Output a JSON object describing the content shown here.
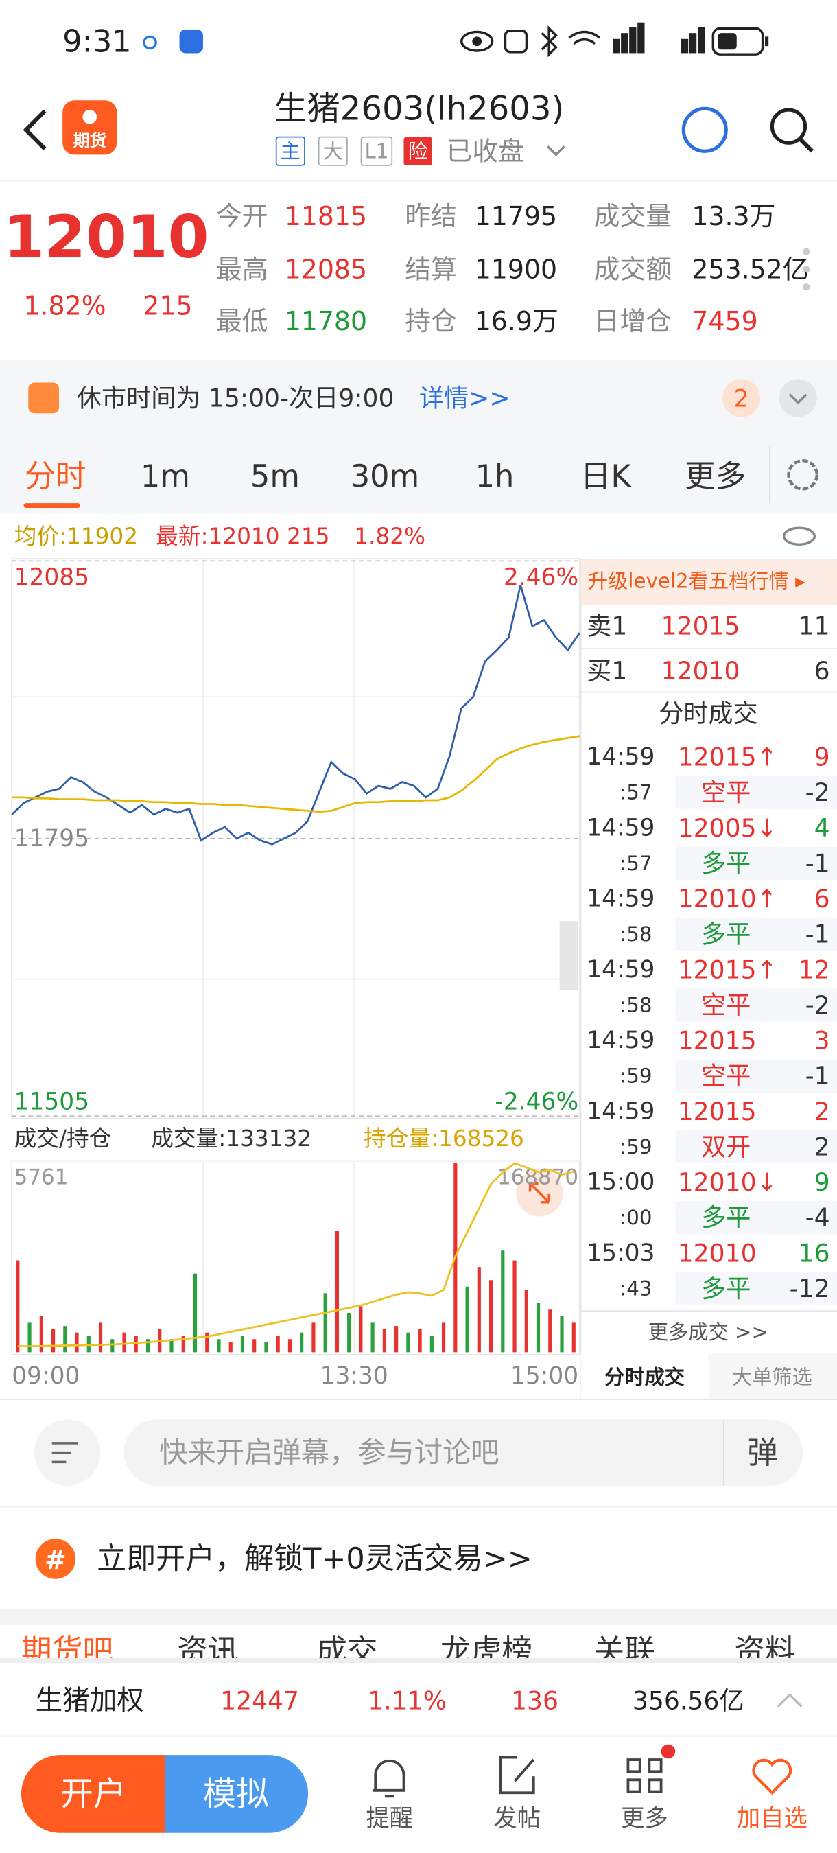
{
  "status_bar": {
    "time": "9:31"
  },
  "header": {
    "logo": "期货",
    "title": "生猪2603(lh2603)",
    "tags": [
      "主",
      "大",
      "L1",
      "险"
    ],
    "status": "已收盘"
  },
  "quote": {
    "price": "12010",
    "change_pct": "1.82%",
    "change": "215",
    "fields": [
      {
        "label": "今开",
        "value": "11815",
        "color": "#e8322f"
      },
      {
        "label": "昨结",
        "value": "11795",
        "color": "#222222"
      },
      {
        "label": "成交量",
        "value": "13.3万",
        "color": "#222222"
      },
      {
        "label": "最高",
        "value": "12085",
        "color": "#e8322f"
      },
      {
        "label": "结算",
        "value": "11900",
        "color": "#222222"
      },
      {
        "label": "成交额",
        "value": "253.52亿",
        "color": "#222222"
      },
      {
        "label": "最低",
        "value": "11780",
        "color": "#1e9a3a"
      },
      {
        "label": "持仓",
        "value": "16.9万",
        "color": "#222222"
      },
      {
        "label": "日增仓",
        "value": "7459",
        "color": "#e8322f"
      }
    ]
  },
  "notice": {
    "text": "休市时间为 15:00-次日9:00",
    "link": "详情>>",
    "badge": "2"
  },
  "tabs": [
    "分时",
    "1m",
    "5m",
    "30m",
    "1h",
    "日K",
    "更多"
  ],
  "chart_info": {
    "average": "均价:11902",
    "latest": "最新:12010",
    "change": "215",
    "change_pct": "1.82%"
  },
  "volume_info": {
    "selector": "成交/持仓",
    "volume": "成交量:133132",
    "open_interest": "持仓量:168526"
  },
  "chart_data": [
    {
      "type": "line",
      "ylim": [
        11505,
        12085
      ],
      "yticks": [
        12085,
        11795,
        11505
      ],
      "y2lim": [
        -2.46,
        2.46
      ],
      "y2ticks": [
        {
          "value": 2.46,
          "label": "2.46%"
        },
        {
          "value": -2.46,
          "label": "-2.46%"
        }
      ],
      "x_labels": [
        "09:00",
        "13:30",
        "15:00"
      ],
      "series": [
        {
          "color": "#2f5fa8",
          "values": [
            11820,
            11832,
            11838,
            11844,
            11847,
            11859,
            11854,
            11844,
            11838,
            11830,
            11822,
            11830,
            11820,
            11826,
            11822,
            11826,
            11793,
            11801,
            11807,
            11795,
            11801,
            11793,
            11789,
            11795,
            11801,
            11813,
            11844,
            11875,
            11863,
            11857,
            11842,
            11850,
            11847,
            11854,
            11850,
            11838,
            11847,
            11881,
            11931,
            11943,
            11980,
            11992,
            12005,
            12060,
            12017,
            12023,
            12005,
            11992,
            12010
          ]
        },
        {
          "color": "#e6b800",
          "values": [
            11838,
            11838,
            11837,
            11837,
            11836,
            11836,
            11836,
            11835,
            11835,
            11835,
            11834,
            11834,
            11833,
            11833,
            11832,
            11832,
            11831,
            11831,
            11830,
            11830,
            11829,
            11828,
            11827,
            11826,
            11825,
            11824,
            11823,
            11824,
            11828,
            11832,
            11833,
            11833,
            11834,
            11834,
            11834,
            11835,
            11835,
            11838,
            11845,
            11855,
            11866,
            11878,
            11884,
            11889,
            11893,
            11896,
            11898,
            11900,
            11902
          ]
        }
      ]
    },
    {
      "type": "bar",
      "ylim": [
        0,
        5761
      ],
      "yticks": [
        5761
      ],
      "y2lim": [
        161000,
        168870
      ],
      "y2ticks": [
        168870
      ],
      "values": [
        2800,
        900,
        1100,
        700,
        800,
        600,
        500,
        900,
        400,
        600,
        500,
        400,
        700,
        400,
        500,
        2400,
        600,
        400,
        300,
        500,
        400,
        300,
        500,
        400,
        600,
        900,
        1800,
        3700,
        1200,
        1400,
        900,
        700,
        800,
        600,
        700,
        500,
        900,
        5761,
        2000,
        2600,
        2200,
        3100,
        2800,
        1900,
        1500,
        1300,
        1100,
        900
      ],
      "colors": [
        "#e8322f",
        "#2aa13c",
        "#e8322f",
        "#e8322f",
        "#2aa13c",
        "#e8322f",
        "#2aa13c",
        "#e8322f",
        "#2aa13c",
        "#e8322f",
        "#e8322f",
        "#2aa13c",
        "#e8322f",
        "#2aa13c",
        "#e8322f",
        "#2aa13c",
        "#e8322f",
        "#2aa13c",
        "#e8322f",
        "#2aa13c",
        "#e8322f",
        "#2aa13c",
        "#e8322f",
        "#e8322f",
        "#2aa13c",
        "#e8322f",
        "#2aa13c",
        "#e8322f",
        "#2aa13c",
        "#e8322f",
        "#2aa13c",
        "#e8322f",
        "#e8322f",
        "#2aa13c",
        "#e8322f",
        "#2aa13c",
        "#e8322f",
        "#e8322f",
        "#2aa13c",
        "#e8322f",
        "#e8322f",
        "#2aa13c",
        "#e8322f",
        "#e8322f",
        "#2aa13c",
        "#e8322f",
        "#2aa13c",
        "#e8322f"
      ],
      "series": [
        {
          "axis": "y2",
          "color": "#f0c020",
          "values": [
            161250,
            161250,
            161260,
            161270,
            161280,
            161290,
            161300,
            161310,
            161330,
            161350,
            161380,
            161420,
            161460,
            161500,
            161550,
            161600,
            161650,
            161750,
            161850,
            161950,
            162050,
            162150,
            162250,
            162350,
            162450,
            162550,
            162650,
            162750,
            162850,
            162950,
            163100,
            163250,
            163400,
            163500,
            163450,
            163350,
            163600,
            165000,
            166000,
            167000,
            168000,
            168500,
            168870,
            168700,
            168500,
            168600,
            168400,
            168526
          ]
        }
      ]
    }
  ],
  "order_book": {
    "banner": "升级level2看五档行情 ▸",
    "rows": [
      {
        "side": "卖1",
        "price": "12015",
        "volume": "11"
      },
      {
        "side": "买1",
        "price": "12010",
        "volume": "6"
      }
    ]
  },
  "trades": {
    "title": "分时成交",
    "more": "更多成交 >>",
    "tabs": [
      "分时成交",
      "大单筛选"
    ],
    "rows": [
      {
        "time": "14:59",
        "second": ":57",
        "price": "12015↑",
        "volume": "9",
        "volume_color": "#e8322f",
        "type": "空平",
        "type_color": "#e8322f",
        "change": "-2"
      },
      {
        "time": "14:59",
        "second": ":57",
        "price": "12005↓",
        "volume": "4",
        "volume_color": "#1e9a3a",
        "type": "多平",
        "type_color": "#1e9a3a",
        "change": "-1"
      },
      {
        "time": "14:59",
        "second": ":58",
        "price": "12010↑",
        "volume": "6",
        "volume_color": "#e8322f",
        "type": "多平",
        "type_color": "#1e9a3a",
        "change": "-1"
      },
      {
        "time": "14:59",
        "second": ":58",
        "price": "12015↑",
        "volume": "12",
        "volume_color": "#e8322f",
        "type": "空平",
        "type_color": "#e8322f",
        "change": "-2"
      },
      {
        "time": "14:59",
        "second": ":59",
        "price": "12015",
        "volume": "3",
        "volume_color": "#e8322f",
        "type": "空平",
        "type_color": "#e8322f",
        "change": "-1"
      },
      {
        "time": "14:59",
        "second": ":59",
        "price": "12015",
        "volume": "2",
        "volume_color": "#e8322f",
        "type": "双开",
        "type_color": "#e8322f",
        "change": "2"
      },
      {
        "time": "15:00",
        "second": ":00",
        "price": "12010↓",
        "volume": "9",
        "volume_color": "#1e9a3a",
        "type": "多平",
        "type_color": "#1e9a3a",
        "change": "-4"
      },
      {
        "time": "15:03",
        "second": ":43",
        "price": "12010",
        "volume": "16",
        "volume_color": "#1e9a3a",
        "type": "多平",
        "type_color": "#1e9a3a",
        "change": "-12"
      }
    ]
  },
  "comment": {
    "placeholder": "快来开启弹幕，参与讨论吧",
    "button": "弹"
  },
  "promo": {
    "icon": "#",
    "text": "立即开户，解锁T+0灵活交易>>"
  },
  "section_tabs": [
    "期货吧",
    "资讯",
    "成交",
    "龙虎榜",
    "关联",
    "资料"
  ],
  "ticker": {
    "name": "生猪加权",
    "price": "12447",
    "change_pct": "1.11%",
    "change": "136",
    "amount": "356.56亿"
  },
  "bottom_nav": {
    "open": "开户",
    "demo": "模拟",
    "items": [
      "提醒",
      "发帖",
      "更多",
      "加自选"
    ]
  }
}
